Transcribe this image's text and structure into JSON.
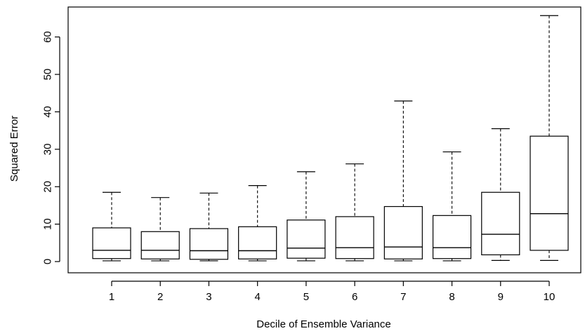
{
  "chart_data": {
    "type": "boxplot",
    "title": "",
    "xlabel": "Decile of Ensemble Variance",
    "ylabel": "Squared Error",
    "ylim": [
      -3,
      68
    ],
    "yticks": [
      0,
      10,
      20,
      30,
      40,
      50,
      60
    ],
    "categories": [
      "1",
      "2",
      "3",
      "4",
      "5",
      "6",
      "7",
      "8",
      "9",
      "10"
    ],
    "boxes": [
      {
        "category": "1",
        "whisker_low": 0.2,
        "q1": 0.8,
        "median": 3.0,
        "q3": 9.0,
        "whisker_high": 18.5
      },
      {
        "category": "2",
        "whisker_low": 0.2,
        "q1": 0.7,
        "median": 3.0,
        "q3": 8.0,
        "whisker_high": 17.1
      },
      {
        "category": "3",
        "whisker_low": 0.2,
        "q1": 0.6,
        "median": 2.9,
        "q3": 8.8,
        "whisker_high": 18.3
      },
      {
        "category": "4",
        "whisker_low": 0.2,
        "q1": 0.7,
        "median": 2.9,
        "q3": 9.3,
        "whisker_high": 20.3
      },
      {
        "category": "5",
        "whisker_low": 0.2,
        "q1": 0.9,
        "median": 3.6,
        "q3": 11.1,
        "whisker_high": 24.0
      },
      {
        "category": "6",
        "whisker_low": 0.2,
        "q1": 0.8,
        "median": 3.7,
        "q3": 12.0,
        "whisker_high": 26.1
      },
      {
        "category": "7",
        "whisker_low": 0.2,
        "q1": 0.7,
        "median": 3.9,
        "q3": 14.7,
        "whisker_high": 42.9
      },
      {
        "category": "8",
        "whisker_low": 0.2,
        "q1": 0.8,
        "median": 3.7,
        "q3": 12.3,
        "whisker_high": 29.3
      },
      {
        "category": "9",
        "whisker_low": 0.3,
        "q1": 1.8,
        "median": 7.3,
        "q3": 18.5,
        "whisker_high": 35.5
      },
      {
        "category": "10",
        "whisker_low": 0.3,
        "q1": 3.0,
        "median": 12.8,
        "q3": 33.5,
        "whisker_high": 65.7
      }
    ],
    "grid": false,
    "legend": "none",
    "colors": {
      "box_fill": "#ffffff",
      "stroke": "#000000"
    }
  }
}
